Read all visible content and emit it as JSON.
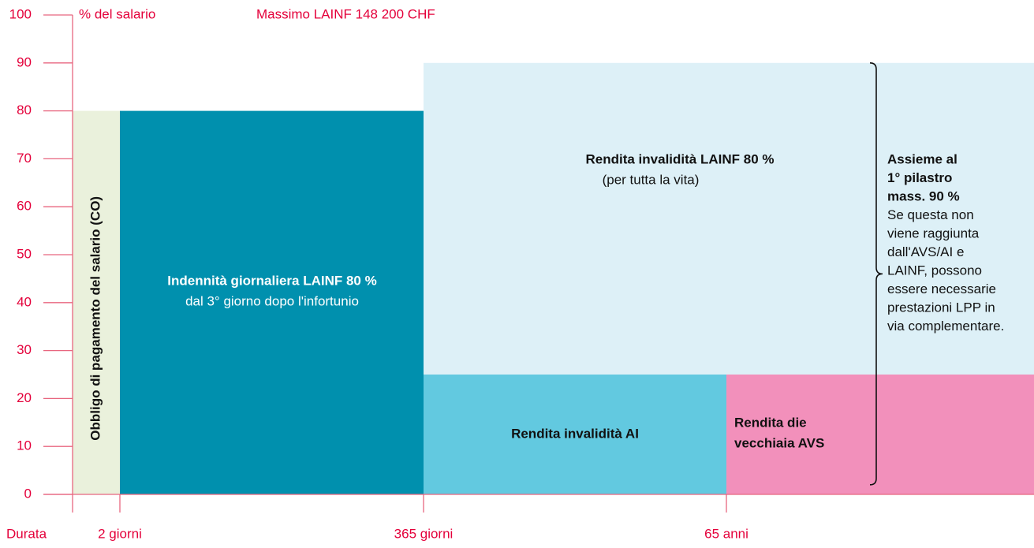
{
  "chart_data": {
    "type": "block",
    "y_label": "% del salario",
    "annotation": "Massimo LAINF 148 200 CHF",
    "x_label": "Durata",
    "ylim": [
      0,
      100
    ],
    "yticks": [
      0,
      10,
      20,
      30,
      40,
      50,
      60,
      70,
      80,
      90,
      100
    ],
    "categories": [
      "2 giorni",
      "365 giorni",
      "65 anni"
    ],
    "blocks": [
      {
        "title": [
          "Obbligo di pagamento del salario (CO)"
        ],
        "range": [
          0,
          80
        ],
        "color": "#eaf1dc"
      },
      {
        "title": [
          "Indennità giornaliera LAINF 80 %"
        ],
        "subtitle": "dal 3° giorno dopo l'infortunio",
        "range": [
          0,
          80
        ],
        "color": "#0090ae"
      },
      {
        "title": [
          "Rendita invalidità LAINF 80 %"
        ],
        "subtitle": "(per tutta la vita)",
        "range": [
          25,
          90
        ],
        "color": "#ddf0f7"
      },
      {
        "title": [
          "Rendita invalidità AI"
        ],
        "range": [
          0,
          25
        ],
        "color": "#62c9e0"
      },
      {
        "title": [
          "Rendita die",
          "vecchiaia AVS"
        ],
        "range": [
          0,
          25
        ],
        "color": "#f290bb"
      }
    ],
    "note": {
      "bold": [
        "Assieme al",
        "1° pilastro",
        "mass. 90 %"
      ],
      "text": [
        "Se questa non",
        "viene raggiunta",
        "dall'AVS/AI e",
        "LAINF, possono",
        "essere necessarie",
        "prestazioni LPP in",
        "via complementare."
      ]
    }
  }
}
